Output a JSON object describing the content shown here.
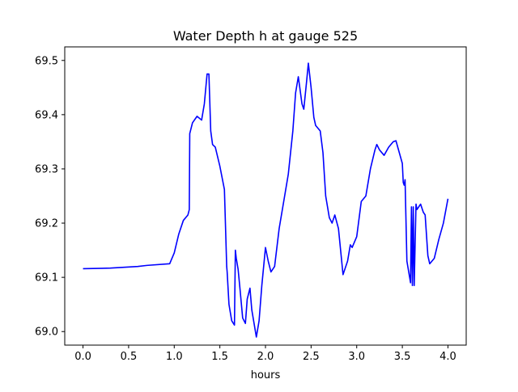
{
  "chart_data": {
    "type": "line",
    "title": "Water Depth h at gauge 525",
    "xlabel": "hours",
    "ylabel": "",
    "xlim": [
      -0.2,
      4.2
    ],
    "ylim": [
      68.975,
      69.525
    ],
    "xticks": [
      0.0,
      0.5,
      1.0,
      1.5,
      2.0,
      2.5,
      3.0,
      3.5,
      4.0
    ],
    "xtick_labels": [
      "0.0",
      "0.5",
      "1.0",
      "1.5",
      "2.0",
      "2.5",
      "3.0",
      "3.5",
      "4.0"
    ],
    "yticks": [
      69.0,
      69.1,
      69.2,
      69.3,
      69.4,
      69.5
    ],
    "ytick_labels": [
      "69.0",
      "69.1",
      "69.2",
      "69.3",
      "69.4",
      "69.5"
    ],
    "grid": false,
    "legend": "none",
    "series": [
      {
        "color": "#0000ff",
        "x": [
          0.0,
          0.3,
          0.6,
          0.7,
          0.95,
          1.0,
          1.05,
          1.1,
          1.15,
          1.165,
          1.17,
          1.2,
          1.25,
          1.3,
          1.33,
          1.36,
          1.38,
          1.4,
          1.42,
          1.45,
          1.5,
          1.55,
          1.575,
          1.58,
          1.6,
          1.63,
          1.66,
          1.67,
          1.68,
          1.7,
          1.72,
          1.75,
          1.78,
          1.8,
          1.83,
          1.85,
          1.9,
          1.93,
          1.96,
          2.0,
          2.03,
          2.06,
          2.1,
          2.15,
          2.2,
          2.25,
          2.3,
          2.33,
          2.36,
          2.4,
          2.42,
          2.45,
          2.47,
          2.5,
          2.53,
          2.55,
          2.6,
          2.63,
          2.66,
          2.7,
          2.73,
          2.76,
          2.8,
          2.85,
          2.9,
          2.93,
          2.95,
          3.0,
          3.05,
          3.1,
          3.15,
          3.2,
          3.22,
          3.25,
          3.3,
          3.35,
          3.4,
          3.43,
          3.45,
          3.5,
          3.51,
          3.52,
          3.53,
          3.55,
          3.58,
          3.59,
          3.6,
          3.61,
          3.62,
          3.63,
          3.65,
          3.66,
          3.7,
          3.73,
          3.75,
          3.78,
          3.8,
          3.85,
          3.9,
          3.95,
          4.0
        ],
        "y": [
          69.116,
          69.117,
          69.12,
          69.122,
          69.125,
          69.145,
          69.18,
          69.205,
          69.215,
          69.225,
          69.365,
          69.385,
          69.397,
          69.39,
          69.42,
          69.475,
          69.475,
          69.37,
          69.345,
          69.34,
          69.305,
          69.262,
          69.12,
          69.11,
          69.05,
          69.02,
          69.012,
          69.15,
          69.135,
          69.115,
          69.08,
          69.025,
          69.015,
          69.06,
          69.08,
          69.04,
          68.99,
          69.02,
          69.085,
          69.155,
          69.13,
          69.11,
          69.12,
          69.19,
          69.24,
          69.29,
          69.37,
          69.44,
          69.47,
          69.42,
          69.41,
          69.46,
          69.495,
          69.45,
          69.395,
          69.38,
          69.37,
          69.33,
          69.25,
          69.21,
          69.2,
          69.215,
          69.19,
          69.105,
          69.13,
          69.16,
          69.155,
          69.175,
          69.24,
          69.25,
          69.3,
          69.335,
          69.345,
          69.335,
          69.325,
          69.34,
          69.35,
          69.352,
          69.34,
          69.31,
          69.275,
          69.27,
          69.28,
          69.13,
          69.1,
          69.09,
          69.23,
          69.085,
          69.23,
          69.085,
          69.235,
          69.225,
          69.235,
          69.22,
          69.215,
          69.14,
          69.125,
          69.135,
          69.17,
          69.2,
          69.245
        ]
      }
    ]
  }
}
